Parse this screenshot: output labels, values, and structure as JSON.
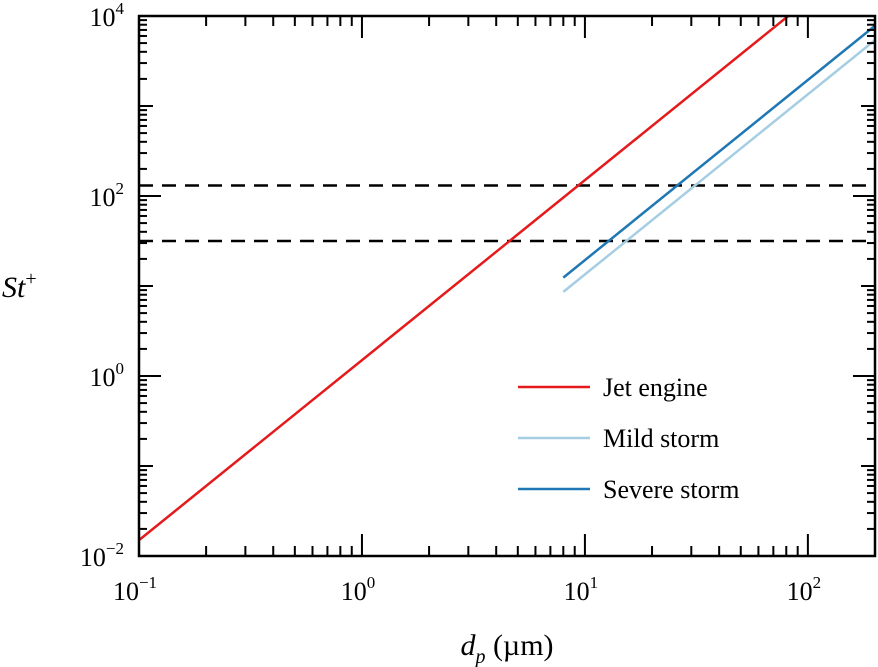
{
  "chart_data": {
    "type": "line",
    "title": "",
    "xlabel": "d_p (µm)",
    "xlabel_var": "d",
    "xlabel_sub": "p",
    "xlabel_unit": " (µm)",
    "ylabel": "St+",
    "ylabel_var": "St",
    "ylabel_sup": "+",
    "x_scale": "log",
    "y_scale": "log",
    "xlim": [
      0.1,
      200
    ],
    "ylim": [
      0.01,
      10000
    ],
    "x_ticks": [
      {
        "base": "10",
        "exp": "−1",
        "value": 0.1
      },
      {
        "base": "10",
        "exp": "0",
        "value": 1
      },
      {
        "base": "10",
        "exp": "1",
        "value": 10
      },
      {
        "base": "10",
        "exp": "2",
        "value": 100
      }
    ],
    "y_ticks": [
      {
        "base": "10",
        "exp": "−2",
        "value": 0.01
      },
      {
        "base": "10",
        "exp": "0",
        "value": 1
      },
      {
        "base": "10",
        "exp": "2",
        "value": 100
      },
      {
        "base": "10",
        "exp": "4",
        "value": 10000
      }
    ],
    "grid": false,
    "legend_position": "bottom-right",
    "series": [
      {
        "name": "Jet engine",
        "color": "#e41a1c",
        "x": [
          0.1,
          200
        ],
        "y": [
          0.015,
          60000
        ]
      },
      {
        "name": "Mild storm",
        "color": "#a6cee3",
        "x": [
          8,
          200
        ],
        "y": [
          8.6,
          5400
        ]
      },
      {
        "name": "Severe storm",
        "color": "#1f78b4",
        "x": [
          8,
          200
        ],
        "y": [
          12.4,
          7800
        ]
      }
    ],
    "reference_lines": [
      {
        "orientation": "horizontal",
        "y": 131,
        "style": "dashed",
        "color": "#000000"
      },
      {
        "orientation": "horizontal",
        "y": 31.6,
        "style": "dashed",
        "color": "#000000"
      }
    ]
  }
}
